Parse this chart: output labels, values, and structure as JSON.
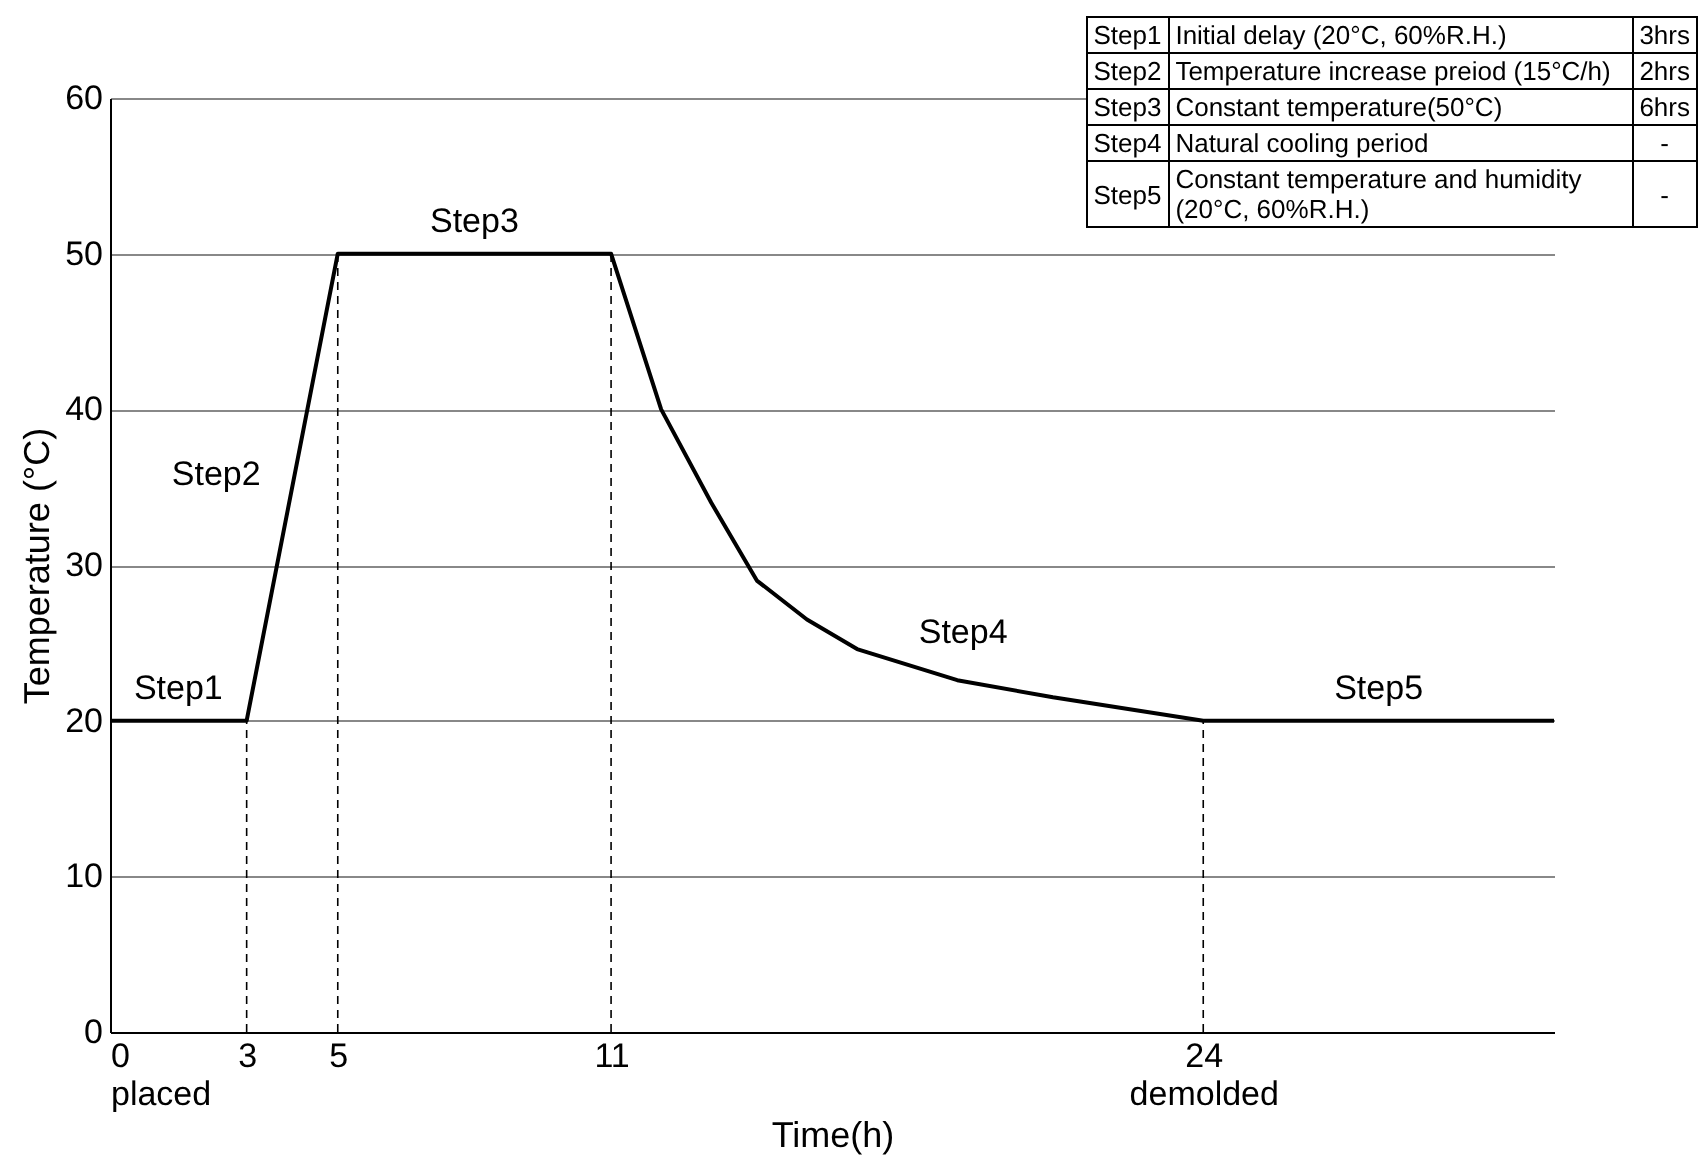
{
  "chart_data": [
    {
      "type": "line",
      "xlabel": "Time(h)",
      "ylabel": "Temperature (°C)",
      "x": [
        0,
        3,
        5,
        11,
        12.1,
        13.2,
        14.2,
        15.3,
        16.4,
        18.6,
        20.7,
        24,
        31.7
      ],
      "series": [
        {
          "color": "#000000",
          "values": [
            20,
            20,
            50,
            50,
            40,
            34,
            29,
            26.5,
            24.6,
            22.6,
            21.5,
            20,
            20
          ]
        }
      ],
      "xlim": [
        0,
        31.7
      ],
      "xticks": [
        {
          "value": 0,
          "label": "0\nplaced"
        },
        3,
        5,
        11,
        {
          "value": 24,
          "label": "24\ndemolded"
        }
      ],
      "ylim": [
        0,
        60
      ],
      "yticks": [
        0,
        10,
        20,
        30,
        40,
        50,
        60
      ],
      "grid": "y",
      "marker": "none",
      "line_style": "solid",
      "ref_lines": [
        {
          "axis": "x",
          "value": 3,
          "line_style": "dashed"
        },
        {
          "axis": "x",
          "value": 5,
          "line_style": "dashed"
        },
        {
          "axis": "x",
          "value": 11,
          "line_style": "dashed"
        },
        {
          "axis": "x",
          "value": 24,
          "line_style": "dashed"
        }
      ],
      "annotations": [
        "Step1",
        "Step2",
        "Step3",
        "Step4",
        "Step5"
      ]
    },
    {
      "type": "other",
      "annotations": [
        "Step1",
        "Initial delay (20°C, 60%R.H.)",
        "3hrs",
        "Step2",
        "Temperature increase preiod (15°C/h)",
        "2hrs",
        "Step3",
        "Constant temperature(50°C)",
        "6hrs",
        "Step4",
        "Natural cooling period",
        "-",
        "Step5",
        "Constant temperature and humidity (20°C, 60%R.H.)",
        "-"
      ]
    }
  ]
}
